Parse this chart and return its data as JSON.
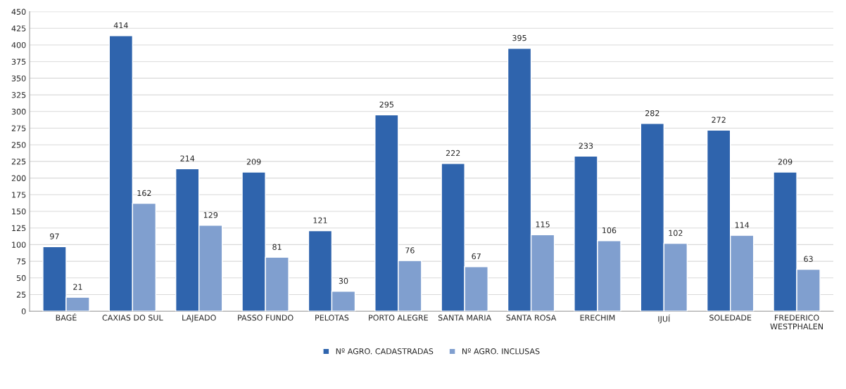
{
  "chart_data": {
    "type": "bar",
    "categories": [
      "BAGÉ",
      "CAXIAS DO SUL",
      "LAJEADO",
      "PASSO FUNDO",
      "PELOTAS",
      "PORTO ALEGRE",
      "SANTA MARIA",
      "SANTA ROSA",
      "ERECHIM",
      "IJUÍ",
      "SOLEDADE",
      "FREDERICO\nWESTPHALEN"
    ],
    "series": [
      {
        "name": "Nº AGRO. CADASTRADAS",
        "color": "#2f64ad",
        "values": [
          97,
          414,
          214,
          209,
          121,
          295,
          222,
          395,
          233,
          282,
          272,
          209
        ]
      },
      {
        "name": "Nº AGRO. INCLUSAS",
        "color": "#809fcf",
        "values": [
          21,
          162,
          129,
          81,
          30,
          76,
          67,
          115,
          106,
          102,
          114,
          63
        ]
      }
    ],
    "ylim": [
      0,
      450
    ],
    "yticks": [
      0,
      25,
      50,
      75,
      100,
      125,
      150,
      175,
      200,
      225,
      250,
      275,
      300,
      325,
      350,
      375,
      400,
      425,
      450
    ],
    "grid": "y",
    "legend": "bottom",
    "data_labels": true
  }
}
